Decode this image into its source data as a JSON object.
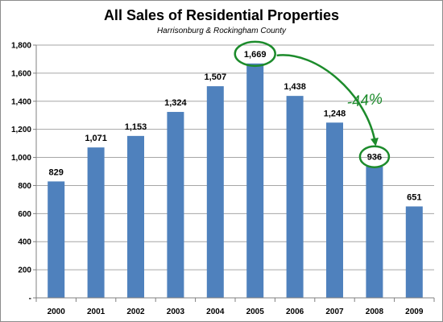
{
  "chart_data": {
    "type": "bar",
    "title": "All Sales of Residential Properties",
    "subtitle": "Harrisonburg & Rockingham County",
    "categories": [
      "2000",
      "2001",
      "2002",
      "2003",
      "2004",
      "2005",
      "2006",
      "2007",
      "2008",
      "2009"
    ],
    "values": [
      829,
      1071,
      1153,
      1324,
      1507,
      1669,
      1438,
      1248,
      936,
      651
    ],
    "value_labels": [
      "829",
      "1,071",
      "1,153",
      "1,324",
      "1,507",
      "1,669",
      "1,438",
      "1,248",
      "936",
      "651"
    ],
    "ylim": [
      0,
      1800
    ],
    "yticks": [
      0,
      200,
      400,
      600,
      800,
      1000,
      1200,
      1400,
      1600,
      1800
    ],
    "ytick_labels": [
      "-",
      "200",
      "400",
      "600",
      "800",
      "1,000",
      "1,200",
      "1,400",
      "1,600",
      "1,800"
    ],
    "xlabel": "",
    "ylabel": "",
    "grid": true,
    "legend": "none",
    "bar_color": "#4f81bd",
    "annotation": {
      "text": "-44%",
      "color": "#1c8b2b",
      "from_category": "2005",
      "to_category": "2008"
    }
  }
}
